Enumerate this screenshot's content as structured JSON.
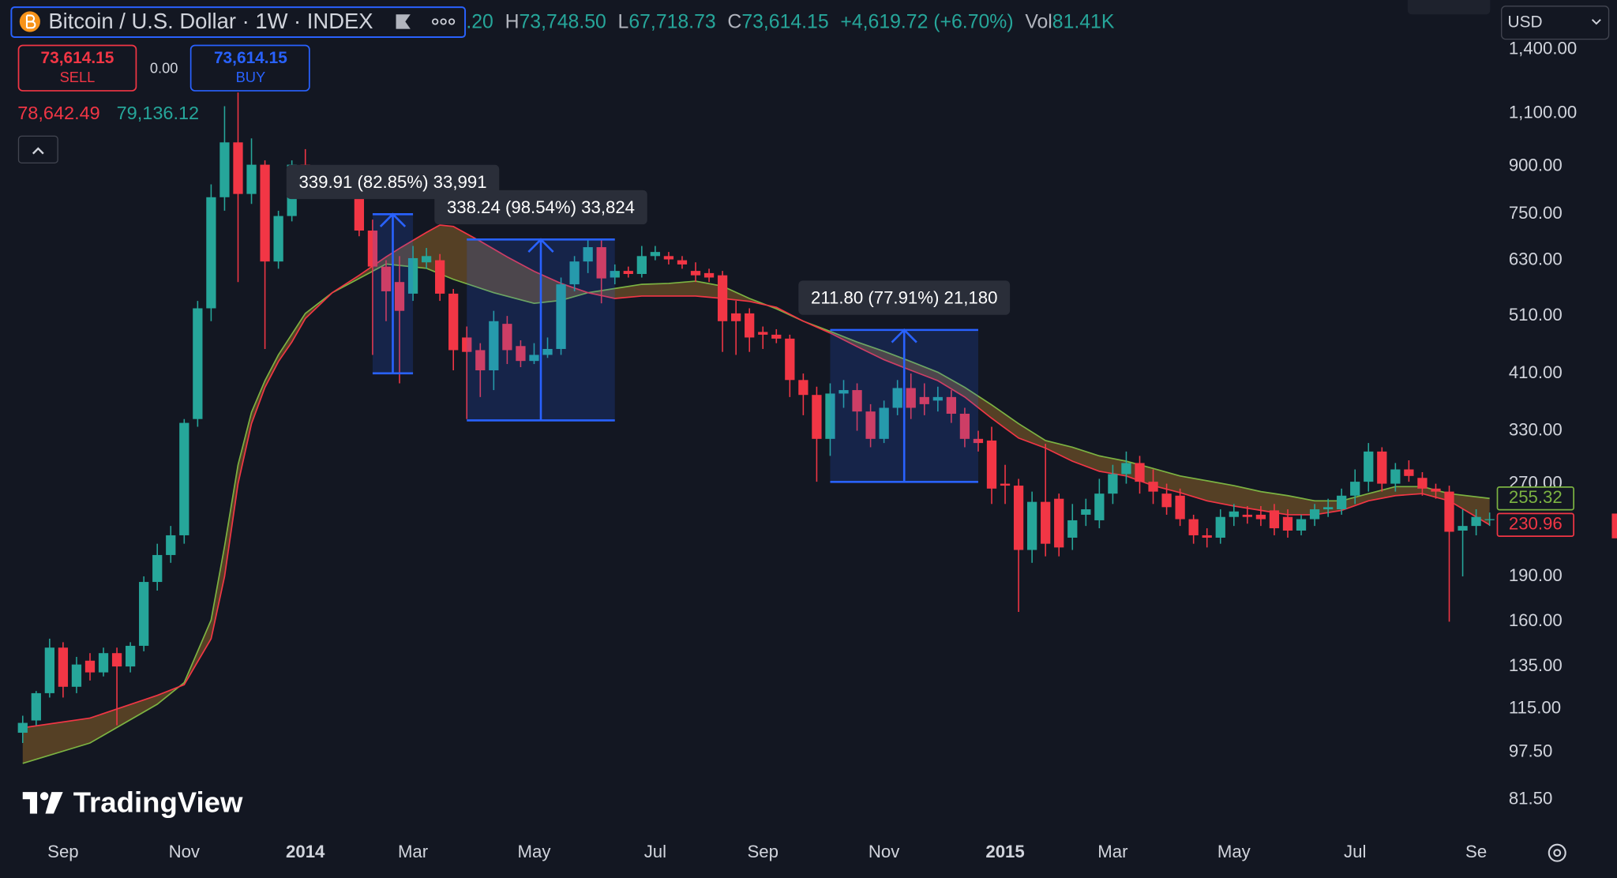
{
  "header": {
    "title": "Bitcoin / U.S. Dollar · 1W · INDEX",
    "fragment": ".20",
    "high": {
      "key": "H",
      "value": "73,748.50"
    },
    "low": {
      "key": "L",
      "value": "67,718.73"
    },
    "close": {
      "key": "C",
      "value": "73,614.15"
    },
    "change": "+4,619.72 (+6.70%)",
    "volume": {
      "key": "Vol",
      "value": "81.41K"
    }
  },
  "trade": {
    "sell_price": "73,614.15",
    "sell": "SELL",
    "spread": "0.00",
    "buy_price": "73,614.15",
    "buy": "BUY"
  },
  "quotes": [
    "78,642.49",
    "79,136.12"
  ],
  "currency": "USD",
  "logo": "TradingView",
  "chart_data": {
    "type": "candlestick",
    "log_scale": true,
    "grid": false,
    "up_color": "#26a69a",
    "down_color": "#f23645",
    "fill_color": "rgba(140,98,40,0.55)",
    "ylim": [
      74,
      1690
    ],
    "yticks": [
      {
        "value": 1400,
        "label": "1,400.00"
      },
      {
        "value": 1100,
        "label": "1,100.00"
      },
      {
        "value": 900,
        "label": "900.00"
      },
      {
        "value": 750,
        "label": "750.00"
      },
      {
        "value": 630,
        "label": "630.00"
      },
      {
        "value": 510,
        "label": "510.00"
      },
      {
        "value": 410,
        "label": "410.00"
      },
      {
        "value": 330,
        "label": "330.00"
      },
      {
        "value": 270,
        "label": "270.00"
      },
      {
        "value": 190,
        "label": "190.00"
      },
      {
        "value": 160,
        "label": "160.00"
      },
      {
        "value": 135,
        "label": "135.00"
      },
      {
        "value": 115,
        "label": "115.00"
      },
      {
        "value": 97.5,
        "label": "97.50"
      },
      {
        "value": 81.5,
        "label": "81.50"
      }
    ],
    "categories": [
      null,
      null,
      null,
      "Sep",
      null,
      null,
      null,
      null,
      null,
      null,
      null,
      null,
      "Nov",
      null,
      null,
      null,
      null,
      null,
      null,
      null,
      null,
      "2014",
      null,
      null,
      null,
      null,
      null,
      null,
      null,
      "Mar",
      null,
      null,
      null,
      null,
      null,
      null,
      null,
      null,
      "May",
      null,
      null,
      null,
      null,
      null,
      null,
      null,
      null,
      "Jul",
      null,
      null,
      null,
      null,
      null,
      null,
      null,
      "Sep",
      null,
      null,
      null,
      null,
      null,
      null,
      null,
      null,
      "Nov",
      null,
      null,
      null,
      null,
      null,
      null,
      null,
      null,
      "2015",
      null,
      null,
      null,
      null,
      null,
      null,
      null,
      "Mar",
      null,
      null,
      null,
      null,
      null,
      null,
      null,
      null,
      "May",
      null,
      null,
      null,
      null,
      null,
      null,
      null,
      null,
      "Jul",
      null,
      null,
      null,
      null,
      null,
      null,
      null,
      null,
      "Se",
      null
    ],
    "open": [
      105,
      110,
      122,
      145,
      125,
      138,
      132,
      142,
      135,
      146,
      186,
      206,
      222,
      345,
      525,
      800,
      985,
      810,
      905,
      627,
      745,
      905,
      825,
      840,
      815,
      830,
      705,
      615,
      580,
      555,
      625,
      630,
      555,
      470,
      448,
      415,
      495,
      455,
      430,
      440,
      450,
      575,
      627,
      662,
      590,
      605,
      598,
      640,
      640,
      630,
      605,
      600,
      595,
      515,
      515,
      480,
      475,
      468,
      400,
      378,
      320,
      380,
      385,
      355,
      320,
      360,
      388,
      375,
      370,
      375,
      352,
      320,
      318,
      270,
      268,
      210,
      252,
      255,
      220,
      240,
      235,
      260,
      280,
      292,
      272,
      260,
      258,
      236,
      222,
      220,
      238,
      240,
      240,
      244,
      238,
      226,
      236,
      245,
      245,
      258,
      272,
      305,
      270,
      285,
      276,
      265,
      262,
      226,
      230,
      236
    ],
    "high": [
      112,
      123,
      150,
      148,
      140,
      142,
      145,
      145,
      148,
      190,
      215,
      230,
      345,
      540,
      840,
      1130,
      1190,
      1000,
      920,
      760,
      920,
      960,
      870,
      850,
      845,
      850,
      735,
      630,
      640,
      665,
      660,
      645,
      565,
      490,
      460,
      520,
      510,
      465,
      460,
      470,
      590,
      640,
      680,
      680,
      620,
      615,
      665,
      665,
      650,
      640,
      625,
      610,
      605,
      540,
      525,
      490,
      485,
      475,
      410,
      390,
      395,
      400,
      395,
      365,
      370,
      400,
      410,
      395,
      390,
      385,
      360,
      330,
      335,
      290,
      275,
      262,
      314,
      260,
      250,
      255,
      275,
      290,
      305,
      300,
      285,
      270,
      265,
      240,
      228,
      245,
      250,
      248,
      248,
      250,
      245,
      240,
      250,
      255,
      265,
      285,
      315,
      310,
      292,
      295,
      282,
      270,
      268,
      245,
      245,
      242
    ],
    "low": [
      101,
      108,
      120,
      120,
      122,
      128,
      130,
      108,
      132,
      143,
      180,
      200,
      215,
      335,
      500,
      760,
      580,
      780,
      450,
      610,
      730,
      800,
      810,
      800,
      795,
      690,
      440,
      500,
      395,
      540,
      610,
      540,
      415,
      345,
      375,
      385,
      425,
      420,
      425,
      435,
      440,
      560,
      600,
      535,
      575,
      590,
      590,
      630,
      620,
      610,
      580,
      580,
      445,
      440,
      445,
      450,
      460,
      375,
      350,
      272,
      300,
      360,
      330,
      310,
      315,
      350,
      345,
      350,
      355,
      340,
      310,
      305,
      250,
      250,
      166,
      200,
      205,
      205,
      210,
      230,
      228,
      250,
      270,
      260,
      250,
      240,
      230,
      215,
      212,
      215,
      230,
      232,
      230,
      222,
      220,
      222,
      230,
      238,
      240,
      250,
      262,
      262,
      262,
      272,
      258,
      255,
      160,
      190,
      222,
      230
    ],
    "close": [
      109,
      122,
      145,
      125,
      136,
      132,
      142,
      135,
      146,
      186,
      206,
      222,
      340,
      525,
      800,
      985,
      810,
      905,
      627,
      745,
      905,
      825,
      840,
      815,
      830,
      705,
      615,
      560,
      520,
      635,
      640,
      555,
      448,
      445,
      415,
      500,
      448,
      430,
      440,
      450,
      575,
      627,
      662,
      588,
      605,
      598,
      640,
      650,
      632,
      620,
      595,
      590,
      500,
      500,
      470,
      475,
      468,
      400,
      378,
      320,
      380,
      385,
      355,
      320,
      360,
      388,
      360,
      365,
      375,
      352,
      320,
      315,
      265,
      268,
      210,
      252,
      215,
      212,
      235,
      245,
      260,
      280,
      292,
      272,
      262,
      247,
      236,
      222,
      220,
      238,
      243,
      238,
      236,
      228,
      226,
      236,
      245,
      247,
      258,
      272,
      305,
      270,
      285,
      278,
      265,
      262,
      225,
      230,
      238,
      236
    ],
    "series": [
      {
        "color": "#7cb342",
        "x": [
          0,
          5,
          10,
          12,
          14,
          15,
          16,
          17,
          18,
          19,
          20,
          21,
          23,
          25,
          27,
          30,
          32,
          35,
          38,
          40,
          42,
          44,
          46,
          48,
          50,
          52,
          54,
          56,
          58,
          60,
          62,
          64,
          66,
          68,
          70,
          72,
          74,
          76,
          78,
          80,
          82,
          84,
          86,
          88,
          90,
          92,
          94,
          96,
          98,
          100,
          102,
          104,
          106,
          109
        ],
        "values": [
          93.5,
          101,
          117,
          127,
          161,
          213,
          290,
          354,
          399,
          440,
          476,
          515,
          557,
          588,
          621,
          611,
          586,
          557,
          535,
          541,
          557,
          566,
          575,
          577,
          582,
          571,
          545,
          524,
          500,
          481,
          462,
          446,
          429,
          412,
          389,
          364,
          339,
          318,
          310,
          300,
          294,
          286,
          278,
          273,
          268,
          262,
          258,
          253,
          253,
          260,
          267,
          267,
          260,
          255.32
        ]
      },
      {
        "color": "#f23645",
        "x": [
          0,
          5,
          10,
          12,
          14,
          15,
          16,
          17,
          18,
          19,
          20,
          21,
          23,
          25,
          27,
          28,
          30,
          31,
          32,
          34,
          36,
          38,
          40,
          42,
          44,
          46,
          50,
          52,
          54,
          56,
          58,
          60,
          62,
          64,
          66,
          68,
          70,
          72,
          74,
          76,
          78,
          80,
          82,
          84,
          86,
          88,
          90,
          92,
          94,
          96,
          98,
          100,
          102,
          104,
          106,
          109
        ],
        "values": [
          107,
          111,
          121,
          126,
          150,
          190,
          270,
          339,
          389,
          429,
          462,
          505,
          557,
          595,
          638,
          659,
          700,
          720,
          716,
          677,
          638,
          604,
          577,
          557,
          545,
          550,
          550,
          545,
          539,
          527,
          500,
          478,
          454,
          432,
          415,
          399,
          375,
          346,
          321,
          309,
          294,
          283,
          278,
          268,
          261,
          253,
          248,
          244,
          240,
          240,
          244,
          253,
          258,
          260,
          253,
          230.96
        ]
      }
    ],
    "measures": [
      {
        "label": "339.91 (82.85%) 33,991",
        "low": 410.27,
        "high": 750.18,
        "start": 26,
        "end": 29
      },
      {
        "label": "338.24 (98.54%) 33,824",
        "low": 343.25,
        "high": 681.49,
        "start": 33,
        "end": 44
      },
      {
        "label": "211.80 (77.91%) 21,180",
        "low": 271.85,
        "high": 483.65,
        "start": 60,
        "end": 71
      }
    ]
  }
}
